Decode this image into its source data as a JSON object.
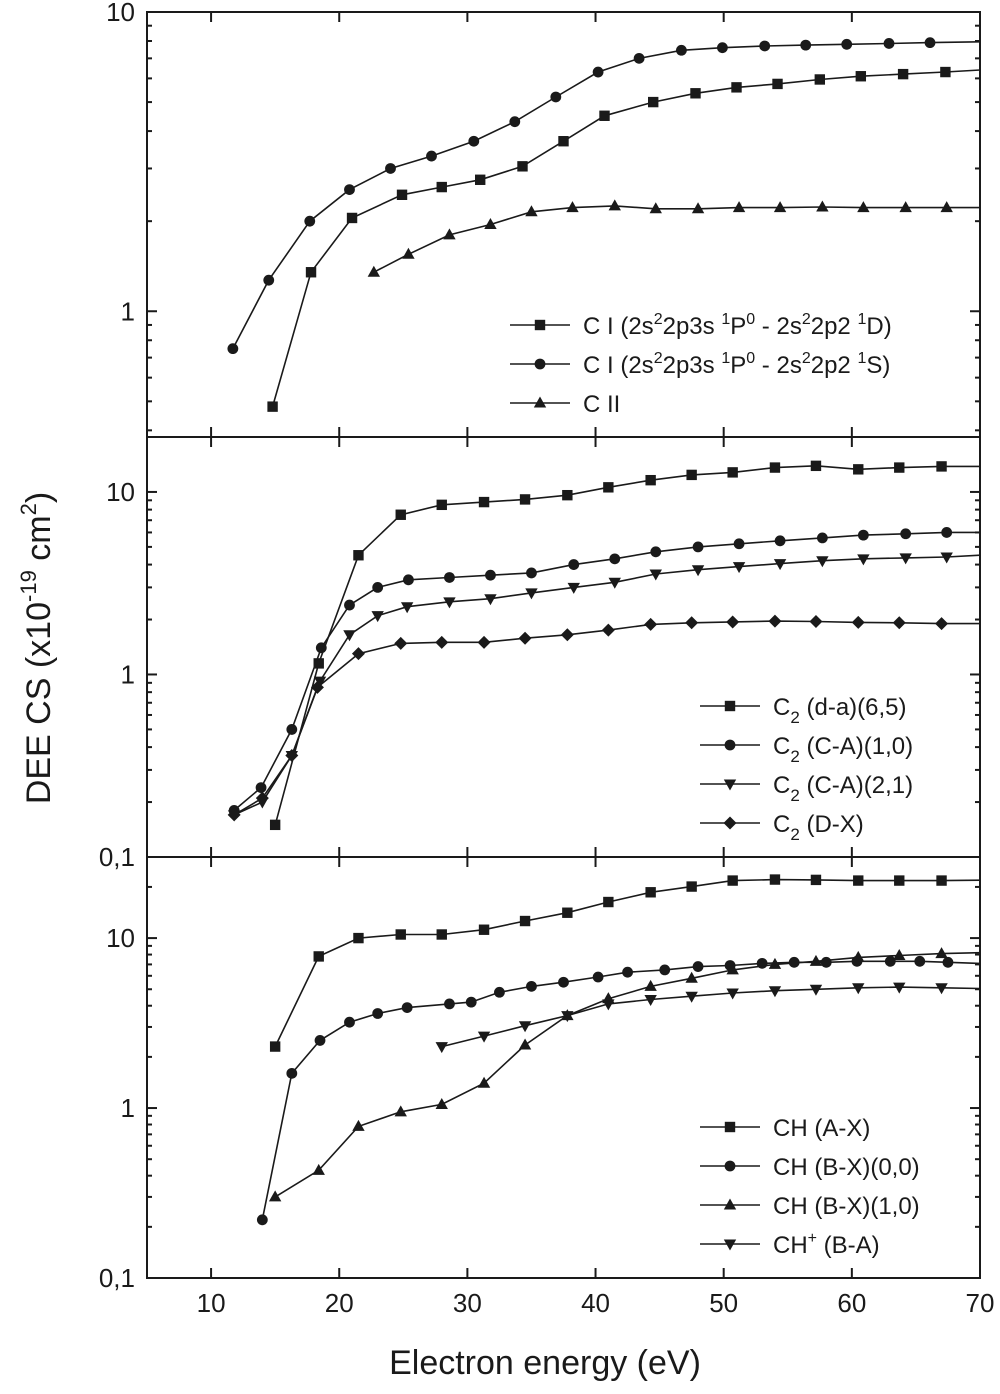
{
  "figure": {
    "ylabel_main": "DEE CS (x10",
    "ylabel_exp": "-19",
    "ylabel_mid": " cm",
    "ylabel_exp2": "2",
    "ylabel_end": ")",
    "xlabel": "Electron energy (eV)"
  },
  "colors": {
    "line": "#1a1a1a",
    "background": "#ffffff"
  },
  "chart_data": [
    {
      "type": "line",
      "panel": "top",
      "yscale": "log",
      "xlim": [
        5,
        70
      ],
      "ylim": [
        0.38,
        10
      ],
      "xticks": [
        10,
        20,
        30,
        40,
        50,
        60,
        70
      ],
      "yticks": [
        {
          "value": 1,
          "label": "1"
        },
        {
          "value": 10,
          "label": "10"
        }
      ],
      "legend_position": "bottom-right",
      "series": [
        {
          "name": "C I (2s²2p3s ¹P⁰ - 2s²2p2 ¹D)",
          "legend": {
            "pre": "C I (2s",
            "s1": "2",
            "m1": "2p3s ",
            "s2": "1",
            "m2": "P",
            "s3": "0",
            "m3": " - 2s",
            "s4": "2",
            "m4": "2p2 ",
            "s5": "1",
            "post": "D)"
          },
          "marker": "square",
          "x": [
            14.8,
            17.8,
            21.0,
            24.9,
            28.0,
            31.0,
            34.3,
            37.5,
            40.7,
            44.5,
            47.8,
            51.0,
            54.2,
            57.5,
            60.7,
            64.0,
            67.3,
            70.0
          ],
          "y": [
            0.48,
            1.35,
            2.05,
            2.45,
            2.6,
            2.75,
            3.05,
            3.7,
            4.5,
            5.0,
            5.35,
            5.6,
            5.75,
            5.95,
            6.1,
            6.2,
            6.3,
            6.4
          ]
        },
        {
          "name": "C I (2s²2p3s ¹P⁰ - 2s²2p2 ¹S)",
          "legend": {
            "pre": "C I (2s",
            "s1": "2",
            "m1": "2p3s ",
            "s2": "1",
            "m2": "P",
            "s3": "0",
            "m3": " - 2s",
            "s4": "2",
            "m4": "2p2 ",
            "s5": "1",
            "post": "S)"
          },
          "marker": "circle",
          "x": [
            11.7,
            14.5,
            17.7,
            20.8,
            24.0,
            27.2,
            30.5,
            33.7,
            36.9,
            40.2,
            43.4,
            46.7,
            49.9,
            53.2,
            56.4,
            59.6,
            62.9,
            66.1,
            70.0
          ],
          "y": [
            0.75,
            1.27,
            2.0,
            2.55,
            3.0,
            3.3,
            3.7,
            4.3,
            5.2,
            6.3,
            7.0,
            7.45,
            7.6,
            7.7,
            7.75,
            7.8,
            7.85,
            7.9,
            7.95
          ]
        },
        {
          "name": "C II",
          "legend": {
            "pre": "C II",
            "s1": "",
            "m1": "",
            "s2": "",
            "m2": "",
            "s3": "",
            "m3": "",
            "s4": "",
            "m4": "",
            "s5": "",
            "post": ""
          },
          "marker": "triangle-up",
          "x": [
            22.7,
            25.4,
            28.6,
            31.8,
            35.0,
            38.2,
            41.5,
            44.7,
            48.0,
            51.2,
            54.4,
            57.7,
            60.9,
            64.2,
            67.4,
            70.0
          ],
          "y": [
            1.35,
            1.55,
            1.8,
            1.95,
            2.15,
            2.22,
            2.25,
            2.2,
            2.2,
            2.22,
            2.22,
            2.23,
            2.22,
            2.22,
            2.22,
            2.22
          ]
        }
      ]
    },
    {
      "type": "line",
      "panel": "middle",
      "yscale": "log",
      "xlim": [
        5,
        70
      ],
      "ylim": [
        0.1,
        20
      ],
      "xticks": [
        10,
        20,
        30,
        40,
        50,
        60,
        70
      ],
      "yticks": [
        {
          "value": 0.1,
          "label": "0,1"
        },
        {
          "value": 1,
          "label": "1"
        },
        {
          "value": 10,
          "label": "10"
        }
      ],
      "legend_position": "bottom-right",
      "series": [
        {
          "name": "C₂ (d-a)(6,5)",
          "legend": {
            "pre": "C",
            "sub": "2",
            "post": " (d-a)(6,5)"
          },
          "marker": "square",
          "x": [
            15.0,
            18.4,
            21.5,
            24.8,
            28.0,
            31.3,
            34.5,
            37.8,
            41.0,
            44.3,
            47.5,
            50.7,
            54.0,
            57.2,
            60.5,
            63.7,
            67.0,
            70.0
          ],
          "y": [
            0.15,
            1.15,
            4.5,
            7.5,
            8.5,
            8.8,
            9.1,
            9.6,
            10.6,
            11.6,
            12.4,
            12.8,
            13.6,
            13.9,
            13.3,
            13.6,
            13.8,
            13.8
          ]
        },
        {
          "name": "C₂ (C-A)(1,0)",
          "legend": {
            "pre": "C",
            "sub": "2",
            "post": " (C-A)(1,0)"
          },
          "marker": "circle",
          "x": [
            11.8,
            13.9,
            16.3,
            18.6,
            20.8,
            23.0,
            25.4,
            28.6,
            31.8,
            35.0,
            38.3,
            41.5,
            44.7,
            48.0,
            51.2,
            54.4,
            57.7,
            60.9,
            64.2,
            67.4,
            70.0
          ],
          "y": [
            0.18,
            0.24,
            0.5,
            1.4,
            2.4,
            3.0,
            3.3,
            3.4,
            3.5,
            3.6,
            4.0,
            4.3,
            4.7,
            5.0,
            5.2,
            5.4,
            5.6,
            5.8,
            5.9,
            6.0,
            6.0
          ]
        },
        {
          "name": "C₂ (C-A)(2,1)",
          "legend": {
            "pre": "C",
            "sub": "2",
            "post": " (C-A)(2,1)"
          },
          "marker": "triangle-down",
          "x": [
            11.8,
            14.0,
            16.3,
            18.5,
            20.8,
            23.0,
            25.3,
            28.6,
            31.8,
            35.0,
            38.3,
            41.5,
            44.7,
            48.0,
            51.2,
            54.4,
            57.7,
            60.9,
            64.2,
            67.4,
            70.0
          ],
          "y": [
            0.17,
            0.2,
            0.36,
            0.92,
            1.65,
            2.1,
            2.35,
            2.5,
            2.6,
            2.8,
            3.0,
            3.2,
            3.55,
            3.75,
            3.9,
            4.05,
            4.2,
            4.3,
            4.35,
            4.4,
            4.5
          ]
        },
        {
          "name": "C₂ (D-X)",
          "legend": {
            "pre": "C",
            "sub": "2",
            "post": " (D-X)"
          },
          "marker": "diamond",
          "x": [
            11.8,
            14.0,
            16.3,
            18.3,
            21.5,
            24.8,
            28.0,
            31.3,
            34.5,
            37.8,
            41.0,
            44.3,
            47.5,
            50.7,
            54.0,
            57.2,
            60.5,
            63.7,
            67.0,
            70.0
          ],
          "y": [
            0.17,
            0.21,
            0.36,
            0.85,
            1.3,
            1.48,
            1.5,
            1.5,
            1.58,
            1.65,
            1.75,
            1.88,
            1.92,
            1.94,
            1.96,
            1.95,
            1.93,
            1.92,
            1.9,
            1.9
          ]
        }
      ]
    },
    {
      "type": "line",
      "panel": "bottom",
      "yscale": "log",
      "xlim": [
        5,
        70
      ],
      "ylim": [
        0.1,
        30
      ],
      "xticks": [
        10,
        20,
        30,
        40,
        50,
        60,
        70
      ],
      "yticks": [
        {
          "value": 0.1,
          "label": "0,1"
        },
        {
          "value": 1,
          "label": "1"
        },
        {
          "value": 10,
          "label": "10"
        }
      ],
      "legend_position": "bottom-right",
      "series": [
        {
          "name": "CH (A-X)",
          "legend": {
            "pre": "CH (A-X)",
            "sup": "",
            "post": ""
          },
          "marker": "square",
          "x": [
            15.0,
            18.4,
            21.5,
            24.8,
            28.0,
            31.3,
            34.5,
            37.8,
            41.0,
            44.3,
            47.5,
            50.7,
            54.0,
            57.2,
            60.5,
            63.7,
            67.0,
            70.0
          ],
          "y": [
            2.3,
            7.8,
            10.0,
            10.5,
            10.5,
            11.2,
            12.6,
            14.1,
            16.3,
            18.6,
            20.1,
            21.8,
            22.1,
            22.0,
            21.8,
            21.8,
            21.8,
            21.9
          ]
        },
        {
          "name": "CH (B-X)(0,0)",
          "legend": {
            "pre": "CH (B-X)(0,0)",
            "sup": "",
            "post": ""
          },
          "marker": "circle",
          "x": [
            14.0,
            16.3,
            18.5,
            20.8,
            23.0,
            25.3,
            28.6,
            30.3,
            32.5,
            35.0,
            37.5,
            40.2,
            42.5,
            45.4,
            48.0,
            50.5,
            53.0,
            55.5,
            58.0,
            60.4,
            63.0,
            65.3,
            67.5,
            70.0
          ],
          "y": [
            0.22,
            1.6,
            2.5,
            3.2,
            3.6,
            3.9,
            4.1,
            4.2,
            4.8,
            5.2,
            5.5,
            5.9,
            6.3,
            6.5,
            6.8,
            6.9,
            7.1,
            7.2,
            7.2,
            7.3,
            7.3,
            7.3,
            7.2,
            7.1
          ]
        },
        {
          "name": "CH (B-X)(1,0)",
          "legend": {
            "pre": "CH (B-X)(1,0)",
            "sup": "",
            "post": ""
          },
          "marker": "triangle-up",
          "x": [
            15.0,
            18.4,
            21.5,
            24.8,
            28.0,
            31.3,
            34.5,
            37.8,
            41.0,
            44.3,
            47.5,
            50.7,
            54.0,
            57.2,
            60.5,
            63.7,
            67.0,
            70.0
          ],
          "y": [
            0.3,
            0.43,
            0.78,
            0.95,
            1.05,
            1.4,
            2.35,
            3.5,
            4.4,
            5.2,
            5.8,
            6.5,
            7.0,
            7.3,
            7.7,
            7.9,
            8.1,
            8.2
          ]
        },
        {
          "name": "CH⁺ (B-A)",
          "legend": {
            "pre": "CH",
            "sup": "+",
            "post": " (B-A)"
          },
          "marker": "triangle-down",
          "x": [
            28.0,
            31.3,
            34.5,
            37.8,
            41.0,
            44.3,
            47.5,
            50.7,
            54.0,
            57.2,
            60.5,
            63.7,
            67.0,
            70.0
          ],
          "y": [
            2.3,
            2.65,
            3.05,
            3.5,
            4.1,
            4.35,
            4.55,
            4.75,
            4.9,
            5.0,
            5.1,
            5.15,
            5.1,
            5.05
          ]
        }
      ]
    }
  ]
}
